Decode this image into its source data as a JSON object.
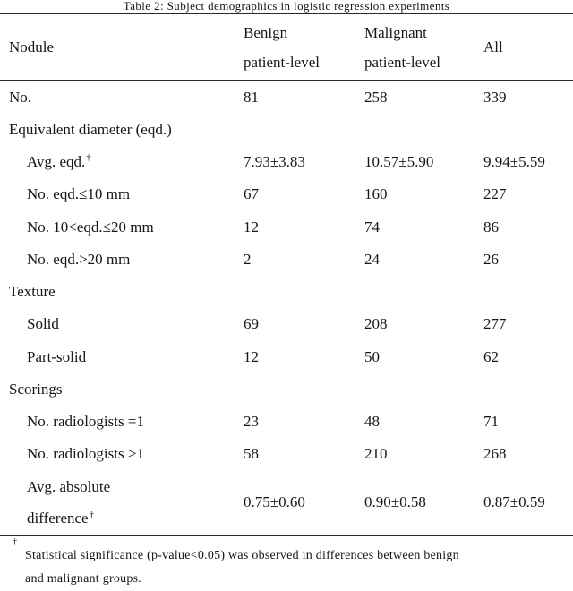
{
  "caption": "Table 2: Subject demographics in logistic regression experiments",
  "header": {
    "col1": "Nodule",
    "col2_lines": [
      "Benign",
      "patient-level"
    ],
    "col3_lines": [
      "Malignant",
      "patient-level"
    ],
    "col4": "All"
  },
  "rows": [
    {
      "label": "No.",
      "values": [
        "81",
        "258",
        "339"
      ]
    },
    {
      "label": "Equivalent diameter (eqd.)",
      "section": true,
      "values": [
        "",
        "",
        ""
      ]
    },
    {
      "label": "Avg. eqd.",
      "sup": "†",
      "indent": true,
      "values": [
        "7.93±3.83",
        "10.57±5.90",
        "9.94±5.59"
      ]
    },
    {
      "label": "No. eqd.≤10 mm",
      "indent": true,
      "values": [
        "67",
        "160",
        "227"
      ]
    },
    {
      "label": "No. 10<eqd.≤20 mm",
      "indent": true,
      "values": [
        "12",
        "74",
        "86"
      ]
    },
    {
      "label": "No. eqd.>20 mm",
      "indent": true,
      "values": [
        "2",
        "24",
        "26"
      ]
    },
    {
      "label": "Texture",
      "section": true,
      "values": [
        "",
        "",
        ""
      ]
    },
    {
      "label": "Solid",
      "indent": true,
      "values": [
        "69",
        "208",
        "277"
      ]
    },
    {
      "label": "Part-solid",
      "indent": true,
      "values": [
        "12",
        "50",
        "62"
      ]
    },
    {
      "label": "Scorings",
      "section": true,
      "values": [
        "",
        "",
        ""
      ]
    },
    {
      "label": "No. radiologists =1",
      "indent": true,
      "values": [
        "23",
        "48",
        "71"
      ]
    },
    {
      "label": "No. radiologists >1",
      "indent": true,
      "values": [
        "58",
        "210",
        "268"
      ]
    },
    {
      "label_lines": [
        "Avg. absolute",
        "difference"
      ],
      "sup": "†",
      "indent": true,
      "tall": true,
      "values": [
        "0.75±0.60",
        "0.90±0.58",
        "0.87±0.59"
      ]
    }
  ],
  "footnote": {
    "marker": "†",
    "lines": [
      "Statistical significance (p-value<0.05) was observed in differences between benign",
      "and malignant groups."
    ]
  }
}
